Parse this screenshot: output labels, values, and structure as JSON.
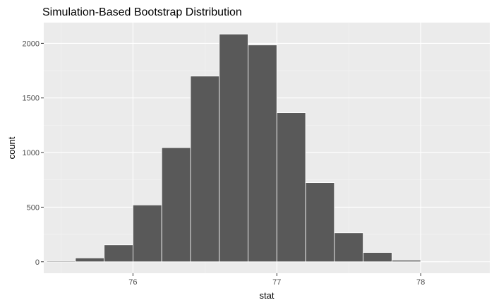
{
  "chart_data": {
    "type": "bar",
    "title": "Simulation-Based Bootstrap Distribution",
    "xlabel": "stat",
    "ylabel": "count",
    "x_ticks": [
      76,
      77,
      78
    ],
    "y_ticks": [
      0,
      500,
      1000,
      1500,
      2000
    ],
    "xlim": [
      75.38,
      78.48
    ],
    "ylim": [
      -105,
      2190
    ],
    "bin_width": 0.2,
    "bins": [
      {
        "x_start": 75.4,
        "x_end": 75.6,
        "count": 8
      },
      {
        "x_start": 75.6,
        "x_end": 75.8,
        "count": 35
      },
      {
        "x_start": 75.8,
        "x_end": 76.0,
        "count": 155
      },
      {
        "x_start": 76.0,
        "x_end": 76.2,
        "count": 520
      },
      {
        "x_start": 76.2,
        "x_end": 76.4,
        "count": 1045
      },
      {
        "x_start": 76.4,
        "x_end": 76.6,
        "count": 1700
      },
      {
        "x_start": 76.6,
        "x_end": 76.8,
        "count": 2085
      },
      {
        "x_start": 76.8,
        "x_end": 77.0,
        "count": 1985
      },
      {
        "x_start": 77.0,
        "x_end": 77.2,
        "count": 1365
      },
      {
        "x_start": 77.2,
        "x_end": 77.4,
        "count": 725
      },
      {
        "x_start": 77.4,
        "x_end": 77.6,
        "count": 265
      },
      {
        "x_start": 77.6,
        "x_end": 77.8,
        "count": 85
      },
      {
        "x_start": 77.8,
        "x_end": 78.0,
        "count": 15
      },
      {
        "x_start": 78.0,
        "x_end": 78.2,
        "count": 1
      },
      {
        "x_start": 78.2,
        "x_end": 78.4,
        "count": 0
      }
    ],
    "grid": true,
    "legend": "none",
    "colors": {
      "panel_background": "#ebebeb",
      "grid_major": "#ffffff",
      "grid_minor": "#f5f5f5",
      "bar_fill": "#595959",
      "bar_outline": "#ffffff",
      "tick_color": "#333333",
      "tick_label_color": "#4d4d4d"
    }
  }
}
